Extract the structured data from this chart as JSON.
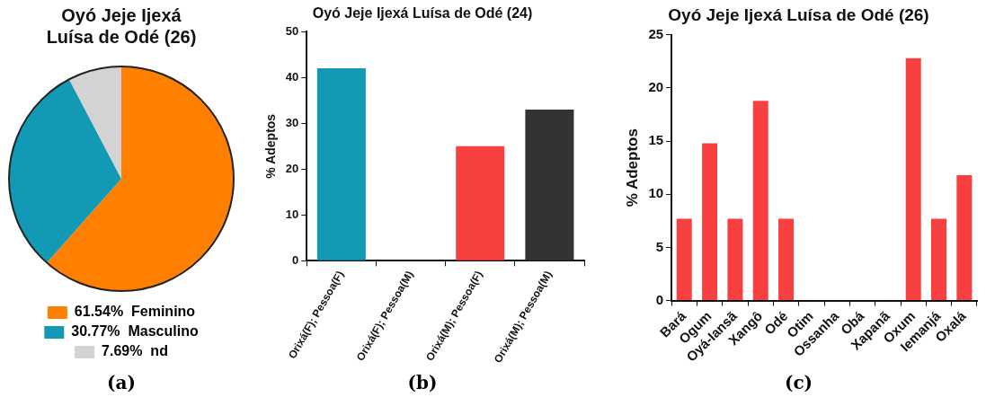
{
  "chart_data": [
    {
      "type": "pie",
      "title": "Oyó Jeje Ijexá\nLuísa de Odé (26)",
      "categories": [
        "Feminino",
        "Masculino",
        "nd"
      ],
      "values": [
        61.54,
        30.77,
        7.69
      ],
      "value_labels": [
        "61.54%",
        "30.77%",
        "7.69%"
      ],
      "colors": [
        "#ff8000",
        "#1199b5",
        "#d3d3d3"
      ],
      "legend": "bottom",
      "annotations": [
        "(a)"
      ]
    },
    {
      "type": "bar",
      "title": "Oyó Jeje Ijexá Luísa de Odé (24)",
      "ylabel": "% Adeptos",
      "categories": [
        "Orixá(F); Pessoa(F)",
        "Orixá(F); Pessoa(M)",
        "Orixá(M); Pessoa(F)",
        "Orixá(M); Pessoa(M)"
      ],
      "values": [
        42,
        0,
        25,
        33
      ],
      "colors": [
        "#1199b5",
        "#1199b5",
        "#f94040",
        "#333333"
      ],
      "ylim": [
        0,
        50
      ],
      "yticks": [
        0,
        10,
        20,
        30,
        40,
        50
      ],
      "annotations": [
        "(b)"
      ]
    },
    {
      "type": "bar",
      "title": "Oyó Jeje Ijexá Luísa de Odé (26)",
      "ylabel": "% Adeptos",
      "categories": [
        "Bará",
        "Ogum",
        "Oyá-Iansã",
        "Xangô",
        "Odé",
        "Otim",
        "Ossanha",
        "Obá",
        "Xapanã",
        "Oxum",
        "Iemanjá",
        "Oxalá"
      ],
      "values": [
        7.7,
        14.8,
        7.7,
        18.8,
        7.7,
        0,
        0,
        0,
        0,
        22.8,
        7.7,
        11.8
      ],
      "color": "#f94040",
      "ylim": [
        0,
        25
      ],
      "yticks": [
        0,
        5,
        10,
        15,
        20,
        25
      ],
      "annotations": [
        "(c)"
      ]
    }
  ]
}
